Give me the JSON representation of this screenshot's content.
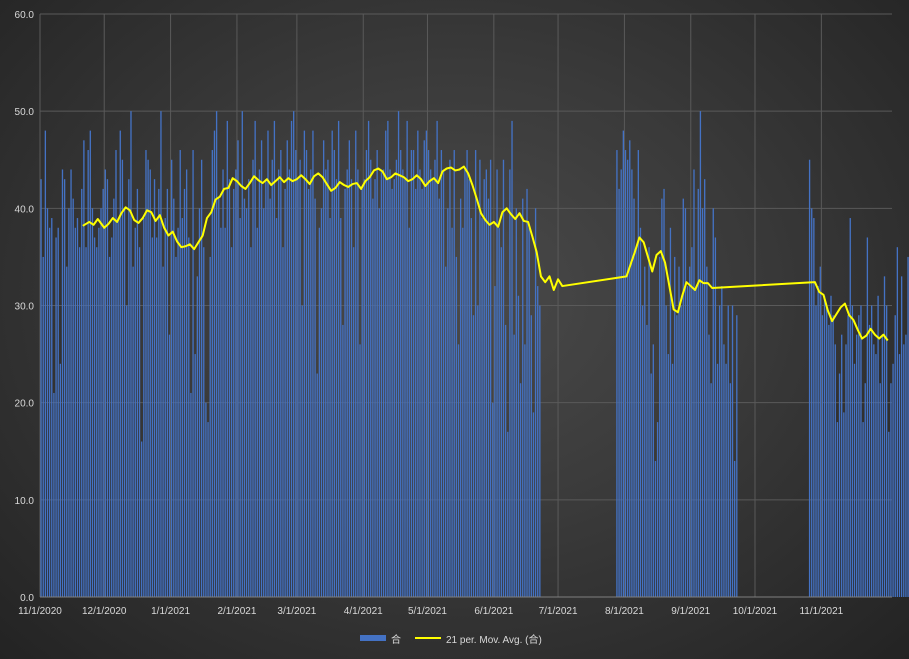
{
  "chart_data": {
    "type": "bar",
    "title": "",
    "xlabel": "",
    "ylabel": "",
    "ylim": [
      0,
      60
    ],
    "y_ticks": [
      "0.0",
      "10.0",
      "20.0",
      "30.0",
      "40.0",
      "50.0",
      "60.0"
    ],
    "x_ticks": [
      "11/1/2020",
      "12/1/2020",
      "1/1/2021",
      "2/1/2021",
      "3/1/2021",
      "4/1/2021",
      "5/1/2021",
      "6/1/2021",
      "7/1/2021",
      "8/1/2021",
      "9/1/2021",
      "10/1/2021",
      "11/1/2021"
    ],
    "grid": "on",
    "legend_position": "bottom",
    "colors": {
      "bars": "#4472c4",
      "moving_average": "#ffff00",
      "text": "#d9d9d9",
      "grid": "#5a5a5a"
    },
    "series": [
      {
        "name": "合",
        "kind": "bar",
        "segments": [
          {
            "start": "2020-11-01",
            "values": [
              43,
              35,
              48,
              40,
              38,
              39,
              21,
              37,
              38,
              24,
              44,
              43,
              34,
              40,
              44,
              41,
              38,
              39,
              36,
              42,
              47,
              36,
              46,
              48,
              40,
              37,
              36,
              38,
              40,
              42,
              44,
              43,
              35,
              37,
              41,
              46,
              39,
              48,
              45,
              40,
              30,
              43,
              50,
              34,
              38,
              42,
              36,
              16,
              39,
              46,
              45,
              44,
              37,
              43,
              37,
              42,
              50,
              34,
              39,
              42,
              27,
              45,
              41,
              35,
              38,
              46,
              39,
              42,
              44,
              37,
              21,
              46,
              25,
              33,
              40,
              45,
              36,
              20,
              18,
              35,
              46,
              48,
              50,
              41,
              38,
              44,
              38,
              49,
              43,
              36,
              42,
              44,
              47,
              39,
              50,
              41,
              40,
              43,
              36,
              45,
              49,
              38,
              44,
              47,
              40,
              43,
              48,
              41,
              45,
              49,
              39,
              44,
              46,
              36,
              42,
              47,
              44,
              49,
              50,
              46,
              43,
              45,
              30,
              48,
              46,
              42,
              44,
              48,
              41,
              23,
              38,
              40,
              47,
              44,
              45,
              39,
              48,
              46,
              43,
              49,
              39,
              28,
              42,
              44,
              47,
              43,
              36,
              48,
              44,
              26,
              42,
              43,
              46,
              49,
              45,
              41,
              43,
              46,
              40,
              44,
              44,
              48,
              49,
              44,
              42,
              43,
              45,
              50,
              46,
              44,
              43,
              49,
              38,
              46,
              46,
              42,
              48,
              44,
              42,
              47,
              48,
              46,
              44,
              43,
              45,
              49,
              41,
              46,
              44,
              34,
              40,
              45,
              38,
              46,
              35,
              26,
              41,
              38,
              44,
              46,
              43,
              39,
              29,
              46,
              30,
              45,
              39,
              43,
              44,
              41,
              45,
              20,
              32,
              44,
              38,
              36,
              45,
              28,
              17,
              44,
              49,
              27,
              40,
              31,
              22,
              41,
              26,
              42,
              38,
              29,
              19,
              40,
              32,
              30
            ]
          },
          {
            "start": "2021-07-28",
            "values": [
              46,
              42,
              44,
              48,
              46,
              45,
              47,
              44,
              41,
              36,
              46,
              38,
              30,
              34,
              28,
              36,
              23,
              26,
              14,
              18,
              35,
              41,
              42,
              30,
              25,
              38,
              24,
              35,
              29,
              34,
              30,
              41,
              40,
              32,
              34,
              36,
              44,
              32,
              42,
              50,
              40,
              43,
              34,
              27,
              22,
              40,
              37,
              24,
              30,
              32,
              26,
              24,
              30,
              22,
              30,
              14,
              29
            ]
          },
          {
            "start": "2021-10-26",
            "values": [
              45,
              40,
              39,
              30,
              32,
              34,
              29,
              31,
              30,
              28,
              31,
              29,
              26,
              18,
              23,
              27,
              19,
              26,
              29,
              39,
              30,
              24,
              27,
              29,
              30,
              18,
              22,
              37,
              28,
              30,
              26,
              25,
              31,
              22,
              27,
              33,
              30,
              17,
              22,
              24,
              29,
              36,
              25,
              33,
              26,
              27,
              35,
              30,
              24,
              28,
              31,
              26,
              29,
              23,
              27,
              25
            ]
          }
        ]
      },
      {
        "name": "21 per. Mov. Avg. (合)",
        "kind": "line",
        "points": [
          [
            "2020-11-21",
            38.2
          ],
          [
            "2020-11-24",
            38.6
          ],
          [
            "2020-11-26",
            38.3
          ],
          [
            "2020-11-28",
            38.9
          ],
          [
            "2020-12-01",
            38.0
          ],
          [
            "2020-12-03",
            38.4
          ],
          [
            "2020-12-05",
            39.0
          ],
          [
            "2020-12-07",
            38.6
          ],
          [
            "2020-12-09",
            39.5
          ],
          [
            "2020-12-11",
            40.1
          ],
          [
            "2020-12-13",
            39.8
          ],
          [
            "2020-12-15",
            38.8
          ],
          [
            "2020-12-17",
            38.5
          ],
          [
            "2020-12-19",
            39.0
          ],
          [
            "2020-12-21",
            39.8
          ],
          [
            "2020-12-23",
            39.6
          ],
          [
            "2020-12-25",
            38.7
          ],
          [
            "2020-12-27",
            39.3
          ],
          [
            "2020-12-29",
            38.0
          ],
          [
            "2020-12-31",
            37.2
          ],
          [
            "2021-01-02",
            37.6
          ],
          [
            "2021-01-04",
            36.6
          ],
          [
            "2021-01-06",
            36.0
          ],
          [
            "2021-01-08",
            36.1
          ],
          [
            "2021-01-10",
            36.3
          ],
          [
            "2021-01-12",
            35.8
          ],
          [
            "2021-01-14",
            36.5
          ],
          [
            "2021-01-16",
            37.2
          ],
          [
            "2021-01-18",
            39.0
          ],
          [
            "2021-01-20",
            39.6
          ],
          [
            "2021-01-22",
            40.9
          ],
          [
            "2021-01-24",
            41.2
          ],
          [
            "2021-01-26",
            42.0
          ],
          [
            "2021-01-28",
            42.1
          ],
          [
            "2021-01-30",
            43.1
          ],
          [
            "2021-02-01",
            42.8
          ],
          [
            "2021-02-03",
            42.3
          ],
          [
            "2021-02-05",
            42.0
          ],
          [
            "2021-02-07",
            42.6
          ],
          [
            "2021-02-09",
            43.3
          ],
          [
            "2021-02-11",
            42.9
          ],
          [
            "2021-02-13",
            42.6
          ],
          [
            "2021-02-15",
            43.0
          ],
          [
            "2021-02-17",
            42.4
          ],
          [
            "2021-02-19",
            42.8
          ],
          [
            "2021-02-21",
            43.2
          ],
          [
            "2021-02-23",
            42.7
          ],
          [
            "2021-02-25",
            43.1
          ],
          [
            "2021-02-27",
            42.8
          ],
          [
            "2021-03-01",
            43.0
          ],
          [
            "2021-03-03",
            43.4
          ],
          [
            "2021-03-05",
            43.0
          ],
          [
            "2021-03-07",
            42.5
          ],
          [
            "2021-03-09",
            43.3
          ],
          [
            "2021-03-11",
            43.6
          ],
          [
            "2021-03-13",
            43.2
          ],
          [
            "2021-03-15",
            42.5
          ],
          [
            "2021-03-17",
            41.8
          ],
          [
            "2021-03-19",
            42.1
          ],
          [
            "2021-03-21",
            42.7
          ],
          [
            "2021-03-23",
            42.4
          ],
          [
            "2021-03-25",
            42.2
          ],
          [
            "2021-03-27",
            42.5
          ],
          [
            "2021-03-29",
            42.6
          ],
          [
            "2021-03-31",
            42.0
          ],
          [
            "2021-04-02",
            42.8
          ],
          [
            "2021-04-04",
            43.2
          ],
          [
            "2021-04-06",
            43.9
          ],
          [
            "2021-04-08",
            44.1
          ],
          [
            "2021-04-10",
            43.8
          ],
          [
            "2021-04-12",
            43.0
          ],
          [
            "2021-04-14",
            43.2
          ],
          [
            "2021-04-16",
            43.6
          ],
          [
            "2021-04-18",
            43.4
          ],
          [
            "2021-04-20",
            43.2
          ],
          [
            "2021-04-22",
            42.8
          ],
          [
            "2021-04-24",
            43.0
          ],
          [
            "2021-04-26",
            43.4
          ],
          [
            "2021-04-28",
            43.0
          ],
          [
            "2021-04-30",
            42.3
          ],
          [
            "2021-05-02",
            42.8
          ],
          [
            "2021-05-04",
            43.1
          ],
          [
            "2021-05-06",
            42.6
          ],
          [
            "2021-05-08",
            43.8
          ],
          [
            "2021-05-10",
            44.1
          ],
          [
            "2021-05-12",
            44.2
          ],
          [
            "2021-05-14",
            43.9
          ],
          [
            "2021-05-16",
            44.0
          ],
          [
            "2021-05-18",
            44.3
          ],
          [
            "2021-05-20",
            43.6
          ],
          [
            "2021-05-22",
            42.4
          ],
          [
            "2021-05-24",
            41.0
          ],
          [
            "2021-05-26",
            39.5
          ],
          [
            "2021-05-28",
            38.8
          ],
          [
            "2021-05-30",
            38.3
          ],
          [
            "2021-06-01",
            38.6
          ],
          [
            "2021-06-03",
            38.1
          ],
          [
            "2021-06-05",
            39.6
          ],
          [
            "2021-06-07",
            40.0
          ],
          [
            "2021-06-09",
            39.4
          ],
          [
            "2021-06-11",
            38.9
          ],
          [
            "2021-06-13",
            39.5
          ],
          [
            "2021-06-15",
            38.7
          ],
          [
            "2021-06-17",
            38.6
          ],
          [
            "2021-06-19",
            37.1
          ],
          [
            "2021-06-21",
            35.5
          ],
          [
            "2021-06-23",
            33.0
          ],
          [
            "2021-06-25",
            32.4
          ],
          [
            "2021-06-27",
            33.0
          ],
          [
            "2021-06-29",
            31.6
          ],
          [
            "2021-07-01",
            32.7
          ],
          [
            "2021-07-03",
            32.0
          ],
          [
            "2021-08-02",
            33.0
          ],
          [
            "2021-08-06",
            35.6
          ],
          [
            "2021-08-08",
            37.0
          ],
          [
            "2021-08-10",
            36.5
          ],
          [
            "2021-08-12",
            35.0
          ],
          [
            "2021-08-14",
            33.5
          ],
          [
            "2021-08-16",
            35.2
          ],
          [
            "2021-08-18",
            35.6
          ],
          [
            "2021-08-20",
            34.4
          ],
          [
            "2021-08-22",
            32.0
          ],
          [
            "2021-08-24",
            29.6
          ],
          [
            "2021-08-26",
            29.3
          ],
          [
            "2021-08-28",
            31.0
          ],
          [
            "2021-08-30",
            32.4
          ],
          [
            "2021-09-01",
            32.0
          ],
          [
            "2021-09-03",
            31.6
          ],
          [
            "2021-09-05",
            32.6
          ],
          [
            "2021-09-07",
            32.3
          ],
          [
            "2021-09-09",
            32.3
          ],
          [
            "2021-09-11",
            31.8
          ],
          [
            "2021-10-29",
            32.4
          ],
          [
            "2021-10-31",
            31.4
          ],
          [
            "2021-11-02",
            31.1
          ],
          [
            "2021-11-04",
            29.5
          ],
          [
            "2021-11-06",
            28.4
          ],
          [
            "2021-11-08",
            29.1
          ],
          [
            "2021-11-10",
            29.8
          ],
          [
            "2021-11-12",
            30.2
          ],
          [
            "2021-11-14",
            29.0
          ],
          [
            "2021-11-16",
            28.5
          ],
          [
            "2021-11-18",
            27.5
          ],
          [
            "2021-11-20",
            26.6
          ],
          [
            "2021-11-22",
            26.9
          ],
          [
            "2021-11-24",
            27.6
          ],
          [
            "2021-11-26",
            27.0
          ],
          [
            "2021-11-28",
            26.6
          ],
          [
            "2021-11-30",
            27.0
          ],
          [
            "2021-12-02",
            26.4
          ]
        ]
      }
    ]
  }
}
